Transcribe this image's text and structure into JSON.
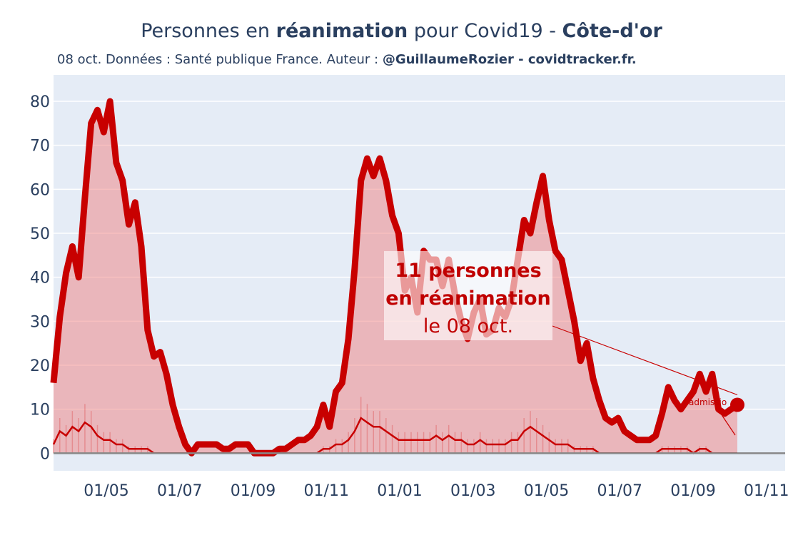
{
  "header": {
    "title_prefix": "Personnes en ",
    "title_bold": "réanimation",
    "title_mid": " pour Covid19 - ",
    "title_region": "Côte-d'or",
    "subtitle_text": "08 oct. Données : Santé publique France. Auteur : ",
    "subtitle_bold": "@GuillaumeRozier - covidtracker.fr."
  },
  "annotation": {
    "line1": "11 personnes",
    "line2": "en réanimation",
    "line3": "le 08 oct.",
    "side_label": "admissio"
  },
  "colors": {
    "plot_bg": "#e5ecf6",
    "main_line": "#c80000",
    "fill": "#f08080",
    "admissions": "#c80000"
  },
  "chart_data": {
    "type": "area",
    "title": "Personnes en réanimation pour Covid19 - Côte-d'or",
    "ylim": [
      -4,
      86
    ],
    "grid": true,
    "legend": "none",
    "x_ticks": [
      "01/05",
      "01/07",
      "01/09",
      "01/11",
      "01/01",
      "01/03",
      "01/05",
      "01/07",
      "01/09",
      "01/11"
    ],
    "y_ticks": [
      "0",
      "10",
      "20",
      "30",
      "40",
      "50",
      "60",
      "70",
      "80"
    ],
    "series": [
      {
        "values": [
          16,
          31,
          41,
          47,
          40,
          58,
          75,
          78,
          73,
          80,
          66,
          62,
          52,
          57,
          47,
          28,
          22,
          23,
          18,
          11,
          6,
          2,
          0,
          2,
          2,
          2,
          2,
          1,
          1,
          2,
          2,
          2,
          0,
          0,
          0,
          0,
          1,
          1,
          2,
          3,
          3,
          4,
          6,
          11,
          6,
          14,
          16,
          26,
          42,
          62,
          67,
          63,
          67,
          62,
          54,
          50,
          37,
          40,
          32,
          46,
          44,
          44,
          38,
          44,
          36,
          30,
          26,
          32,
          35,
          27,
          28,
          33,
          31,
          35,
          44,
          53,
          50,
          57,
          63,
          53,
          46,
          44,
          37,
          30,
          21,
          25,
          17,
          12,
          8,
          7,
          8,
          5,
          4,
          3,
          3,
          3,
          4,
          9,
          15,
          12,
          10,
          12,
          14,
          18,
          14,
          18,
          10,
          9,
          10,
          11
        ]
      },
      {
        "name": "admissions",
        "values": [
          2,
          5,
          4,
          6,
          5,
          7,
          6,
          4,
          3,
          3,
          2,
          2,
          1,
          1,
          1,
          1,
          0,
          0,
          0,
          0,
          0,
          0,
          0,
          0,
          0,
          0,
          0,
          0,
          0,
          0,
          0,
          0,
          0,
          0,
          0,
          0,
          0,
          0,
          0,
          0,
          0,
          0,
          0,
          1,
          1,
          2,
          2,
          3,
          5,
          8,
          7,
          6,
          6,
          5,
          4,
          3,
          3,
          3,
          3,
          3,
          3,
          4,
          3,
          4,
          3,
          3,
          2,
          2,
          3,
          2,
          2,
          2,
          2,
          3,
          3,
          5,
          6,
          5,
          4,
          3,
          2,
          2,
          2,
          1,
          1,
          1,
          1,
          0,
          0,
          0,
          0,
          0,
          0,
          0,
          0,
          0,
          0,
          1,
          1,
          1,
          1,
          1,
          0,
          1,
          1,
          0,
          0,
          0,
          0,
          0
        ]
      }
    ]
  }
}
